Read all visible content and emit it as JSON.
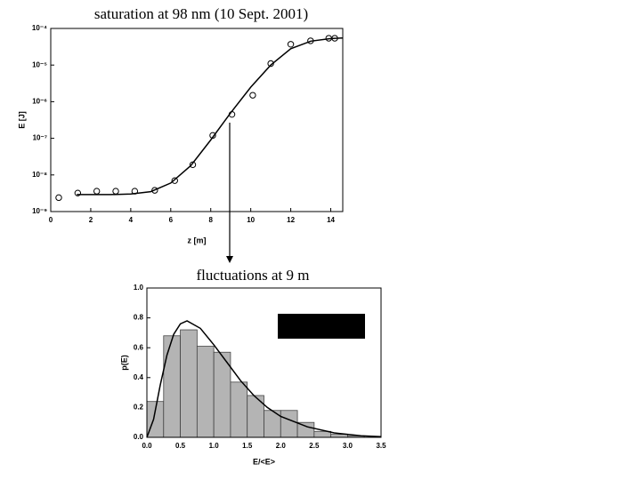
{
  "chart_data": [
    {
      "type": "scatter",
      "title": "saturation at 98 nm (10 Sept. 2001)",
      "xlabel": "z  [m]",
      "ylabel": "E  [J]",
      "xlim": [
        0,
        14.6
      ],
      "ylim": [
        1e-09,
        0.0001
      ],
      "ylog": true,
      "xticks": [
        0,
        2,
        4,
        6,
        8,
        10,
        12,
        14
      ],
      "yticks": [
        {
          "value": 1e-09,
          "label": "10⁻⁹"
        },
        {
          "value": 1e-08,
          "label": "10⁻⁸"
        },
        {
          "value": 1e-07,
          "label": "10⁻⁷"
        },
        {
          "value": 1e-06,
          "label": "10⁻⁶"
        },
        {
          "value": 1e-05,
          "label": "10⁻⁵"
        },
        {
          "value": 0.0001,
          "label": "10⁻⁴"
        }
      ],
      "series": [
        {
          "mode": "markers",
          "color": "#000000",
          "x": [
            0.4,
            1.35,
            2.3,
            3.25,
            4.2,
            5.2,
            6.2,
            7.1,
            8.1,
            9.06,
            10.1,
            11.0,
            12.0,
            12.99,
            13.9,
            14.2
          ],
          "values": [
            2.4e-09,
            3.2e-09,
            3.6e-09,
            3.6e-09,
            3.6e-09,
            3.8e-09,
            7e-09,
            1.9e-08,
            1.2e-07,
            4.5e-07,
            1.5e-06,
            1.1e-05,
            3.7e-05,
            4.6e-05,
            5.4e-05,
            5.4e-05
          ]
        },
        {
          "mode": "line",
          "color": "#000000",
          "x": [
            1.3,
            2,
            3,
            4,
            5,
            6,
            7,
            8,
            9,
            10,
            11,
            12,
            13,
            14,
            14.6
          ],
          "values": [
            2.9e-09,
            2.9e-09,
            2.9e-09,
            3e-09,
            3.5e-09,
            6e-09,
            1.8e-08,
            9e-08,
            5e-07,
            2.5e-06,
            1e-05,
            2.8e-05,
            4.5e-05,
            5.3e-05,
            5.5e-05
          ]
        }
      ]
    },
    {
      "type": "histogram",
      "title": "fluctuations at 9 m",
      "xlabel": "E/<E>",
      "ylabel": "p(E)",
      "xlim": [
        0,
        3.5
      ],
      "ylim": [
        0,
        1.0
      ],
      "xticks": [
        {
          "value": 0,
          "label": "0.0"
        },
        0.5,
        {
          "value": 1,
          "label": "1.0"
        },
        1.5,
        {
          "value": 2,
          "label": "2.0"
        },
        2.5,
        {
          "value": 3,
          "label": "3.0"
        },
        3.5
      ],
      "yticks": [
        {
          "value": 0,
          "label": "0.0"
        },
        0.2,
        0.4,
        0.6,
        0.8,
        {
          "value": 1,
          "label": "1.0"
        }
      ],
      "bins": [
        0,
        0.25,
        0.5,
        0.75,
        1.0,
        1.25,
        1.5,
        1.75,
        2.0,
        2.25,
        2.5,
        2.75,
        3.0,
        3.25
      ],
      "values": [
        0.24,
        0.68,
        0.72,
        0.61,
        0.57,
        0.37,
        0.28,
        0.18,
        0.18,
        0.1,
        0.04,
        0.02,
        0.01
      ],
      "color": "#b4b4b4",
      "curve": {
        "color": "#000000",
        "x": [
          0,
          0.1,
          0.2,
          0.3,
          0.4,
          0.5,
          0.6,
          0.8,
          1.0,
          1.2,
          1.4,
          1.6,
          1.8,
          2.0,
          2.4,
          2.8,
          3.2,
          3.5
        ],
        "values": [
          0,
          0.12,
          0.35,
          0.55,
          0.69,
          0.76,
          0.78,
          0.73,
          0.62,
          0.5,
          0.38,
          0.28,
          0.2,
          0.14,
          0.07,
          0.03,
          0.01,
          0.005
        ]
      }
    }
  ]
}
